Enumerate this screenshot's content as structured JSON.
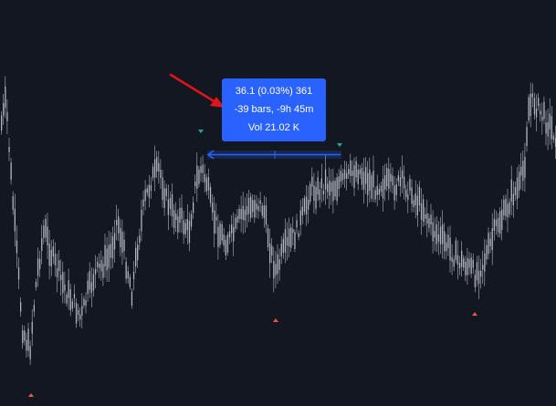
{
  "measure_tooltip": {
    "price_change": "36.1 (0.03%) 361",
    "bars_time": "-39 bars, -9h 45m",
    "volume": "Vol 21.02 K"
  },
  "colors": {
    "background": "#131722",
    "candle": "#b2b5be",
    "tooltip_bg": "#2962ff",
    "measure_line": "#2962ff",
    "annotation_arrow": "#e0141c",
    "marker_up": "#26a69a",
    "marker_down": "#ef5350"
  },
  "icons": {
    "annotation": "red-arrow-icon",
    "high_marker": "green-triangle-down-icon",
    "low_marker": "red-triangle-up-icon"
  }
}
